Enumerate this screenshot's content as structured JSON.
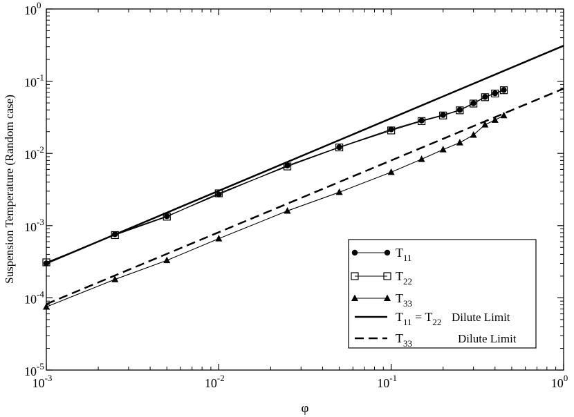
{
  "chart_data": {
    "type": "line",
    "xlabel": "φ",
    "ylabel": "Suspension Temperature (Random case)",
    "xscale": "log",
    "yscale": "log",
    "xlim": [
      0.001,
      1
    ],
    "ylim": [
      1e-05,
      1
    ],
    "x_ticks": [
      {
        "base": "10",
        "exp": "-3"
      },
      {
        "base": "10",
        "exp": "-2"
      },
      {
        "base": "10",
        "exp": "-1"
      },
      {
        "base": "10",
        "exp": "0"
      }
    ],
    "y_ticks": [
      {
        "base": "10",
        "exp": "-5"
      },
      {
        "base": "10",
        "exp": "-4"
      },
      {
        "base": "10",
        "exp": "-3"
      },
      {
        "base": "10",
        "exp": "-2"
      },
      {
        "base": "10",
        "exp": "-1"
      },
      {
        "base": "10",
        "exp": "0"
      }
    ],
    "legend_position": "bottom-right",
    "series": [
      {
        "name": "T11",
        "legend_main": "T",
        "legend_sub": "11",
        "legend_extra": "",
        "marker": "circle",
        "line": "thin",
        "x": [
          0.001,
          0.0025,
          0.005,
          0.01,
          0.025,
          0.05,
          0.1,
          0.15,
          0.2,
          0.25,
          0.3,
          0.35,
          0.4,
          0.45
        ],
        "y": [
          0.0003,
          0.00076,
          0.00135,
          0.0027,
          0.0068,
          0.0122,
          0.0215,
          0.0285,
          0.034,
          0.04,
          0.0495,
          0.0605,
          0.068,
          0.0755
        ]
      },
      {
        "name": "T22",
        "legend_main": "T",
        "legend_sub": "22",
        "legend_extra": "",
        "marker": "square-open",
        "line": "thin",
        "x": [
          0.001,
          0.0025,
          0.005,
          0.01,
          0.025,
          0.05,
          0.1,
          0.15,
          0.2,
          0.25,
          0.3,
          0.35,
          0.4,
          0.45
        ],
        "y": [
          0.00031,
          0.00074,
          0.00133,
          0.0028,
          0.0066,
          0.0121,
          0.0208,
          0.028,
          0.0335,
          0.0395,
          0.049,
          0.06,
          0.0675,
          0.075
        ]
      },
      {
        "name": "T33",
        "legend_main": "T",
        "legend_sub": "33",
        "legend_extra": "",
        "marker": "triangle",
        "line": "thin",
        "x": [
          0.001,
          0.0025,
          0.005,
          0.01,
          0.025,
          0.05,
          0.1,
          0.15,
          0.2,
          0.25,
          0.3,
          0.35,
          0.4,
          0.45
        ],
        "y": [
          7.5e-05,
          0.00018,
          0.00033,
          0.00066,
          0.0016,
          0.0029,
          0.0055,
          0.0083,
          0.0113,
          0.0141,
          0.018,
          0.025,
          0.029,
          0.0335
        ]
      },
      {
        "name": "T11 = T22 Dilute Limit",
        "legend_main": "T",
        "legend_sub": "11",
        "legend_extra": "= T",
        "legend_sub2": "22",
        "legend_note": "Dilute Limit",
        "marker": "none",
        "line": "thick-solid",
        "x": [
          0.001,
          1
        ],
        "y": [
          0.0003,
          0.31
        ]
      },
      {
        "name": "T33 Dilute Limit",
        "legend_main": "T",
        "legend_sub": "33",
        "legend_extra": "",
        "legend_note": "Dilute Limit",
        "marker": "none",
        "line": "thick-dashed",
        "x": [
          0.001,
          1
        ],
        "y": [
          8.2e-05,
          0.079
        ]
      }
    ]
  }
}
